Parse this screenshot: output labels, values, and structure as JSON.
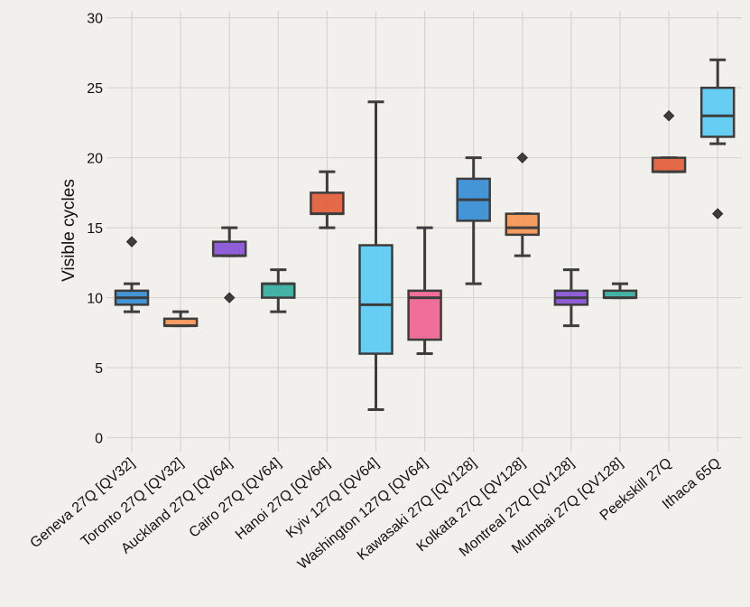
{
  "chart_data": {
    "type": "box",
    "title": "",
    "xlabel": "",
    "ylabel": "Visible cycles",
    "ylim": [
      -1,
      30.5
    ],
    "yticks": [
      0,
      5,
      10,
      15,
      20,
      25,
      30
    ],
    "grid": true,
    "categories": [
      "Geneva 27Q [QV32]",
      "Toronto 27Q [QV32]",
      "Auckland 27Q [QV64]",
      "Cairo 27Q [QV64]",
      "Hanoi 27Q [QV64]",
      "Kyiv 127Q [QV64]",
      "Washington 127Q [QV64]",
      "Kawasaki 27Q [QV128]",
      "Kolkata 27Q [QV128]",
      "Montreal 27Q [QV128]",
      "Mumbai 27Q [QV128]",
      "Peekskill 27Q",
      "Ithaca 65Q"
    ],
    "boxes": [
      {
        "whislo": 9,
        "q1": 9.5,
        "med": 10,
        "q3": 10.5,
        "whishi": 11,
        "fliers": [
          14
        ],
        "color": "#3a8fd4"
      },
      {
        "whislo": 8,
        "q1": 8,
        "med": 8,
        "q3": 8.5,
        "whishi": 9,
        "fliers": [],
        "color": "#f4975a"
      },
      {
        "whislo": 13,
        "q1": 13,
        "med": 13,
        "q3": 14,
        "whishi": 15,
        "fliers": [
          10
        ],
        "color": "#8a55d6"
      },
      {
        "whislo": 9,
        "q1": 10,
        "med": 11,
        "q3": 11,
        "whishi": 12,
        "fliers": [],
        "color": "#3aaea0"
      },
      {
        "whislo": 15,
        "q1": 16,
        "med": 16,
        "q3": 17.5,
        "whishi": 19,
        "fliers": [],
        "color": "#e2613f"
      },
      {
        "whislo": 2,
        "q1": 6,
        "med": 9.5,
        "q3": 13.75,
        "whishi": 24,
        "fliers": [],
        "color": "#5ecbf3"
      },
      {
        "whislo": 6,
        "q1": 7,
        "med": 10,
        "q3": 10.5,
        "whishi": 15,
        "fliers": [],
        "color": "#ef6696"
      },
      {
        "whislo": 11,
        "q1": 15.5,
        "med": 17,
        "q3": 18.5,
        "whishi": 20,
        "fliers": [],
        "color": "#3a8fd4"
      },
      {
        "whislo": 13,
        "q1": 14.5,
        "med": 15,
        "q3": 16,
        "whishi": 16,
        "fliers": [
          20
        ],
        "color": "#f4975a"
      },
      {
        "whislo": 8,
        "q1": 9.5,
        "med": 10,
        "q3": 10.5,
        "whishi": 12,
        "fliers": [],
        "color": "#8a55d6"
      },
      {
        "whislo": 10,
        "q1": 10,
        "med": 10,
        "q3": 10.5,
        "whishi": 11,
        "fliers": [],
        "color": "#3aaea0"
      },
      {
        "whislo": 19,
        "q1": 19,
        "med": 19,
        "q3": 20,
        "whishi": 20,
        "fliers": [
          23
        ],
        "color": "#e2613f"
      },
      {
        "whislo": 21,
        "q1": 21.5,
        "med": 23,
        "q3": 25,
        "whishi": 27,
        "fliers": [
          16
        ],
        "color": "#5ecbf3"
      }
    ]
  }
}
